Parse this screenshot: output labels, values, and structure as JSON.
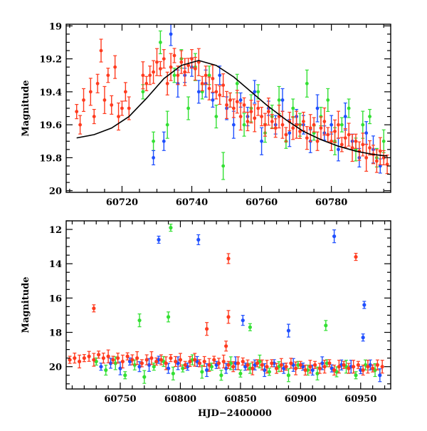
{
  "chart_data": [
    {
      "type": "scatter",
      "panel": "top",
      "title": "",
      "xlabel": "",
      "ylabel": "Magnitude",
      "xlim": [
        60704,
        60797
      ],
      "ylim": [
        20.01,
        18.99
      ],
      "y_inverted": true,
      "xticks": [
        60720,
        60740,
        60760,
        60780
      ],
      "yticks": [
        19,
        19.2,
        19.4,
        19.6,
        19.8,
        20
      ],
      "ytick_labels": [
        "19",
        "19.2",
        "19.4",
        "19.6",
        "19.8",
        "20"
      ],
      "series": [
        {
          "name": "red",
          "color": "#ff3b1f",
          "x": [
            60707,
            60708,
            60709,
            60711,
            60712,
            60713,
            60714,
            60715,
            60716,
            60717,
            60718,
            60719,
            60720,
            60721,
            60722,
            60726,
            60727,
            60728,
            60729,
            60730,
            60731,
            60732,
            60733,
            60734,
            60735,
            60736,
            60737,
            60738,
            60739,
            60740,
            60741,
            60742,
            60743,
            60744,
            60745,
            60746,
            60747,
            60748,
            60749,
            60750,
            60751,
            60752,
            60753,
            60754,
            60755,
            60756,
            60757,
            60758,
            60759,
            60760,
            60761,
            60762,
            60763,
            60764,
            60765,
            60766,
            60767,
            60768,
            60769,
            60770,
            60771,
            60772,
            60773,
            60774,
            60775,
            60776,
            60777,
            60778,
            60779,
            60780,
            60781,
            60782,
            60783,
            60784,
            60785,
            60786,
            60787,
            60788,
            60789,
            60790,
            60791,
            60792,
            60793,
            60794,
            60795,
            60796
          ],
          "y": [
            19.52,
            19.6,
            19.45,
            19.4,
            19.55,
            19.35,
            19.15,
            19.45,
            19.3,
            19.48,
            19.25,
            19.55,
            19.5,
            19.4,
            19.5,
            19.3,
            19.35,
            19.3,
            19.28,
            19.22,
            19.26,
            19.2,
            19.35,
            19.25,
            19.18,
            19.3,
            19.22,
            19.28,
            19.24,
            19.2,
            19.26,
            19.22,
            19.35,
            19.3,
            19.38,
            19.32,
            19.4,
            19.42,
            19.36,
            19.48,
            19.45,
            19.5,
            19.46,
            19.55,
            19.48,
            19.58,
            19.52,
            19.56,
            19.5,
            19.55,
            19.6,
            19.52,
            19.58,
            19.62,
            19.55,
            19.6,
            19.66,
            19.58,
            19.62,
            19.6,
            19.64,
            19.58,
            19.68,
            19.62,
            19.6,
            19.7,
            19.62,
            19.58,
            19.66,
            19.7,
            19.64,
            19.6,
            19.72,
            19.68,
            19.66,
            19.74,
            19.7,
            19.76,
            19.72,
            19.8,
            19.74,
            19.78,
            19.82,
            19.76,
            19.8,
            19.84
          ]
        },
        {
          "name": "green",
          "color": "#33e033",
          "x": [
            60726,
            60729,
            60731,
            60733,
            60735,
            60737,
            60739,
            60741,
            60743,
            60745,
            60747,
            60749,
            60751,
            60753,
            60755,
            60757,
            60759,
            60761,
            60763,
            60765,
            60767,
            60769,
            60771,
            60773,
            60775,
            60777,
            60779,
            60781,
            60783,
            60785,
            60787,
            60789,
            60791,
            60793,
            60795
          ],
          "y": [
            19.4,
            19.7,
            19.1,
            19.6,
            19.3,
            19.2,
            19.5,
            19.25,
            19.4,
            19.3,
            19.55,
            19.85,
            19.45,
            19.35,
            19.6,
            19.5,
            19.4,
            19.65,
            19.55,
            19.45,
            19.7,
            19.5,
            19.6,
            19.35,
            19.65,
            19.55,
            19.45,
            19.7,
            19.6,
            19.5,
            19.75,
            19.6,
            19.55,
            19.8,
            19.7
          ]
        },
        {
          "name": "blue",
          "color": "#1f4fff",
          "x": [
            60729,
            60732,
            60734,
            60736,
            60738,
            60740,
            60742,
            60744,
            60746,
            60748,
            60750,
            60752,
            60754,
            60756,
            60758,
            60760,
            60762,
            60764,
            60766,
            60768,
            60770,
            60772,
            60774,
            60776,
            60778,
            60780,
            60782,
            60784,
            60786,
            60788,
            60790,
            60792,
            60794
          ],
          "y": [
            19.8,
            19.7,
            19.05,
            19.35,
            19.3,
            19.25,
            19.4,
            19.35,
            19.45,
            19.3,
            19.5,
            19.6,
            19.45,
            19.55,
            19.4,
            19.7,
            19.5,
            19.6,
            19.45,
            19.65,
            19.55,
            19.6,
            19.7,
            19.5,
            19.65,
            19.6,
            19.75,
            19.55,
            19.7,
            19.8,
            19.65,
            19.75,
            19.85
          ]
        }
      ],
      "model_curve": {
        "x": [
          60707,
          60712,
          60717,
          60722,
          60727,
          60732,
          60737,
          60742,
          60747,
          60752,
          60757,
          60762,
          60767,
          60772,
          60777,
          60782,
          60787,
          60792,
          60796
        ],
        "y": [
          19.68,
          19.66,
          19.62,
          19.55,
          19.44,
          19.32,
          19.24,
          19.21,
          19.24,
          19.31,
          19.4,
          19.49,
          19.57,
          19.64,
          19.69,
          19.73,
          19.76,
          19.78,
          19.79
        ]
      }
    },
    {
      "type": "scatter",
      "panel": "bottom",
      "title": "",
      "xlabel": "HJD−2400000",
      "ylabel": "Magnitude",
      "xlim": [
        60705,
        60975
      ],
      "ylim": [
        21.3,
        11.5
      ],
      "y_inverted": true,
      "xticks": [
        60750,
        60800,
        60850,
        60900,
        60950
      ],
      "yticks": [
        12,
        14,
        16,
        18,
        20
      ],
      "ytick_labels": [
        "12",
        "14",
        "16",
        "18",
        "20"
      ],
      "series": [
        {
          "name": "red",
          "color": "#ff3b1f",
          "x": [
            60708,
            60712,
            60716,
            60720,
            60724,
            60728,
            60732,
            60736,
            60740,
            60744,
            60748,
            60752,
            60756,
            60760,
            60764,
            60768,
            60772,
            60776,
            60780,
            60784,
            60788,
            60792,
            60796,
            60800,
            60804,
            60808,
            60812,
            60816,
            60820,
            60824,
            60828,
            60832,
            60836,
            60840,
            60844,
            60848,
            60852,
            60856,
            60860,
            60864,
            60868,
            60872,
            60876,
            60880,
            60884,
            60888,
            60892,
            60896,
            60900,
            60904,
            60908,
            60912,
            60916,
            60920,
            60924,
            60928,
            60932,
            60936,
            60940,
            60944,
            60948,
            60952,
            60956,
            60960,
            60964,
            60968,
            60728,
            60840,
            60840,
            60946,
            60838,
            60822
          ],
          "y": [
            19.6,
            19.5,
            19.7,
            19.5,
            19.4,
            19.6,
            19.3,
            19.5,
            19.4,
            19.6,
            19.5,
            19.7,
            19.4,
            19.6,
            19.5,
            19.8,
            19.6,
            19.5,
            19.7,
            19.6,
            19.8,
            19.5,
            19.7,
            19.6,
            19.9,
            19.7,
            19.6,
            19.8,
            19.7,
            19.9,
            19.6,
            19.8,
            19.7,
            19.9,
            20.0,
            19.8,
            19.7,
            19.9,
            20.1,
            19.8,
            19.9,
            20.0,
            19.8,
            20.1,
            19.9,
            20.0,
            19.8,
            20.1,
            19.9,
            20.2,
            20.0,
            19.9,
            20.1,
            20.0,
            19.8,
            20.2,
            20.0,
            19.9,
            20.1,
            20.0,
            19.9,
            20.2,
            20.0,
            20.1,
            19.9,
            20.0,
            16.6,
            13.7,
            17.1,
            13.6,
            18.8,
            17.8
          ]
        },
        {
          "name": "green",
          "color": "#33e033",
          "x": [
            60730,
            60738,
            60746,
            60754,
            60762,
            60770,
            60778,
            60786,
            60794,
            60802,
            60810,
            60818,
            60826,
            60834,
            60842,
            60850,
            60858,
            60866,
            60874,
            60882,
            60890,
            60898,
            60906,
            60914,
            60922,
            60930,
            60938,
            60946,
            60954,
            60962,
            60792,
            60790,
            60766,
            60858,
            60921
          ],
          "y": [
            19.7,
            20.2,
            19.8,
            20.5,
            19.9,
            20.6,
            20.0,
            19.7,
            20.4,
            20.1,
            19.6,
            20.3,
            20.0,
            20.5,
            19.8,
            20.4,
            20.1,
            19.7,
            20.3,
            20.0,
            20.5,
            19.9,
            20.2,
            20.4,
            19.8,
            20.3,
            20.0,
            20.5,
            19.9,
            20.2,
            11.9,
            17.1,
            17.3,
            17.7,
            17.6
          ]
        },
        {
          "name": "blue",
          "color": "#1f4fff",
          "x": [
            60734,
            60742,
            60750,
            60758,
            60766,
            60774,
            60782,
            60790,
            60798,
            60806,
            60814,
            60822,
            60830,
            60838,
            60846,
            60854,
            60862,
            60870,
            60878,
            60886,
            60894,
            60902,
            60910,
            60918,
            60926,
            60934,
            60942,
            60950,
            60958,
            60966,
            60782,
            60815,
            60928,
            60953,
            60852,
            60890,
            60952
          ],
          "y": [
            20.0,
            19.8,
            20.1,
            19.7,
            20.0,
            19.9,
            19.6,
            20.1,
            19.8,
            20.0,
            19.7,
            20.2,
            19.9,
            20.1,
            19.8,
            20.0,
            19.9,
            20.2,
            19.8,
            20.1,
            19.9,
            20.0,
            20.2,
            19.8,
            20.1,
            19.9,
            20.0,
            20.2,
            19.9,
            20.5,
            12.6,
            12.6,
            12.4,
            16.4,
            17.3,
            17.9,
            18.3
          ]
        }
      ]
    }
  ]
}
